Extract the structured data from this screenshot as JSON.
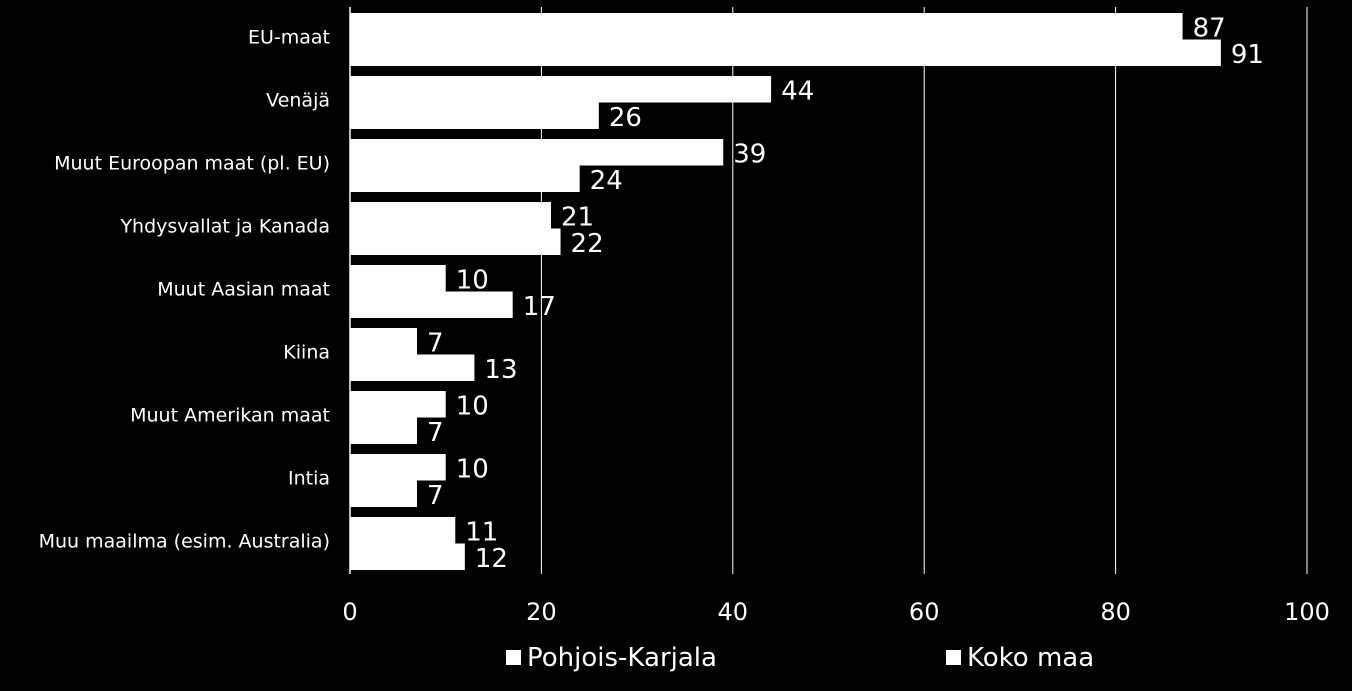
{
  "chart_data": {
    "type": "bar",
    "orientation": "horizontal",
    "categories": [
      "EU-maat",
      "Venäjä",
      "Muut Euroopan maat (pl. EU)",
      "Yhdysvallat ja Kanada",
      "Muut Aasian maat",
      "Kiina",
      "Muut Amerikan maat",
      "Intia",
      "Muu maailma (esim. Australia)"
    ],
    "series": [
      {
        "name": "Pohjois-Karjala",
        "values": [
          87,
          44,
          39,
          21,
          10,
          7,
          10,
          10,
          11
        ]
      },
      {
        "name": "Koko maa",
        "values": [
          91,
          26,
          24,
          22,
          17,
          13,
          7,
          7,
          12
        ]
      }
    ],
    "xlim": [
      0,
      100
    ],
    "xticks": [
      0,
      20,
      40,
      60,
      80,
      100
    ],
    "grid": true,
    "legend_position": "bottom",
    "colors": {
      "background": "#000000",
      "bar": "#ffffff",
      "grid": "#ffffff",
      "text": "#ffffff"
    }
  }
}
